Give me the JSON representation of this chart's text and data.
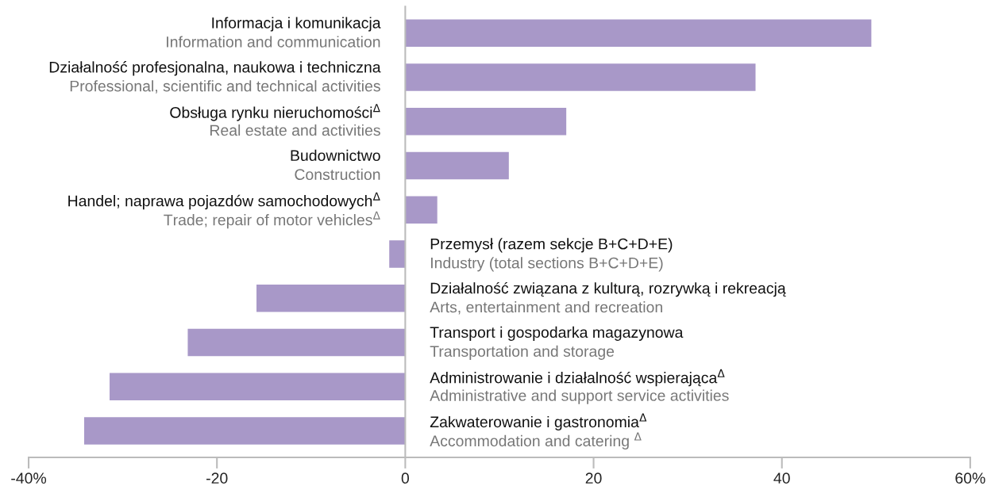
{
  "chart_data": {
    "type": "bar",
    "orientation": "horizontal",
    "categories": [
      "Informacja i komunikacja\nInformation and communication",
      "Działalność profesjonalna, naukowa i techniczna\nProfessional, scientific and technical activities",
      "Obsługa rynku nieruchomości$^{Δ}$\nReal estate and activities",
      "Budownictwo\nConstruction",
      "Handel; naprawa pojazdów samochodowych$^{Δ}$\nTrade; repair of motor vehicles$^{Δ}$",
      "Przemysł (razem sekcje B+C+D+E)\nIndustry (total sections B+C+D+E)",
      "Działalność związana z kulturą, rozrywką i rekreacją\nArts, entertainment and recreation",
      "Transport i gospodarka magazynowa\nTransportation and storage",
      "Administrowanie i działalność wspierająca$^{Δ}$\nAdministrative and support service activities",
      "Zakwaterowanie i gastronomia$^{Δ}$\nAccommodation and catering $^{Δ}$"
    ],
    "values": [
      49.5,
      37.2,
      17.1,
      11.0,
      3.4,
      -1.7,
      -15.8,
      -23.1,
      -31.4,
      -34.1
    ],
    "color": "#a898c8",
    "xlim": [
      -40,
      60
    ],
    "xticks": [
      {
        "value": -40,
        "label": "-40%"
      },
      {
        "value": -20,
        "label": "-20"
      },
      0,
      20,
      40,
      {
        "value": 60,
        "label": "60%"
      }
    ],
    "grid": false,
    "legend": false,
    "tick_labels": "x"
  }
}
